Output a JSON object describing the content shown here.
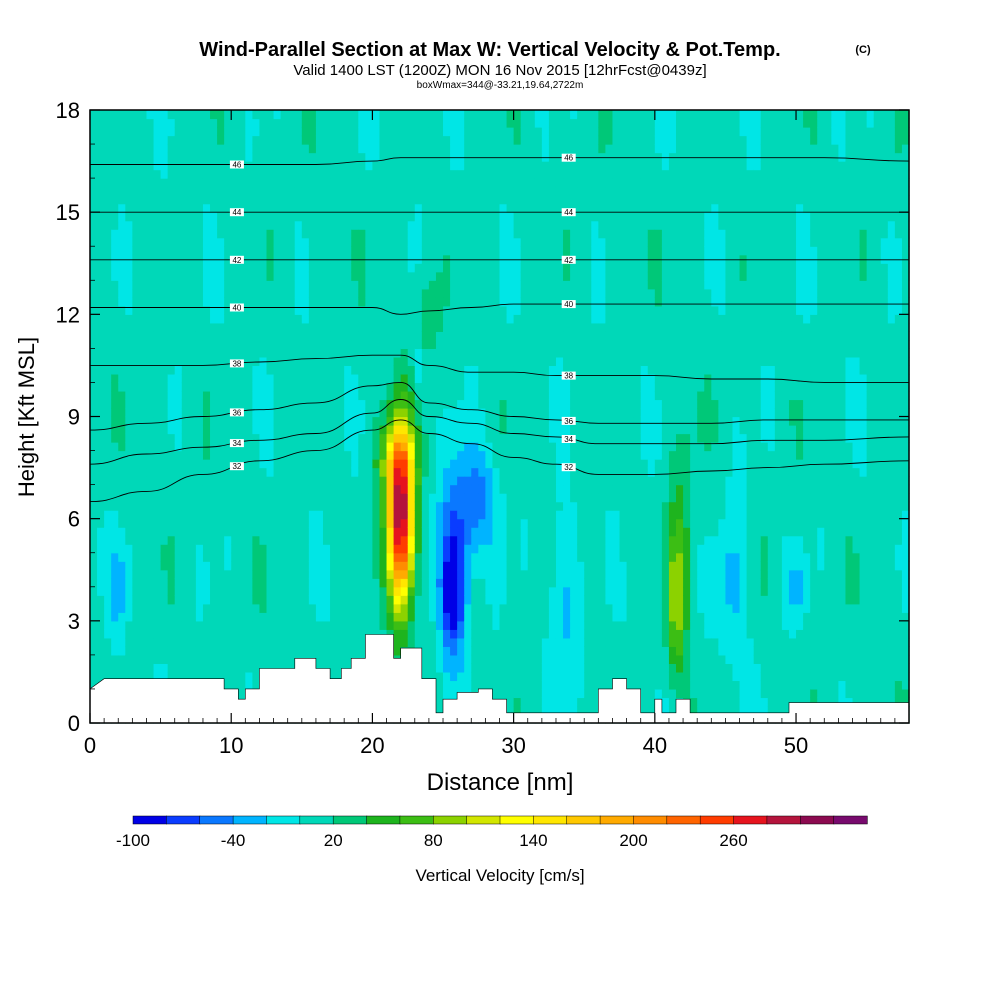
{
  "chart_data": {
    "type": "contour",
    "title": "Wind-Parallel Section at Max W: Vertical Velocity & Pot.Temp.",
    "title_mark": "(C)",
    "subtitle": "Valid 1400 LST (1200Z) MON 16 Nov 2015 [12hrFcst@0439z]",
    "subtitle2": "boxWmax=344@-33.21,19.64,2722m",
    "xlabel": "Distance [nm]",
    "ylabel": "Height [Kft MSL]",
    "xlim": [
      0,
      58
    ],
    "ylim": [
      0,
      18
    ],
    "x_ticks": [
      0,
      10,
      20,
      30,
      40,
      50
    ],
    "y_ticks": [
      0,
      3,
      6,
      9,
      12,
      15,
      18
    ],
    "colorbar": {
      "label": "Vertical Velocity [cm/s]",
      "min": -100,
      "step": 20,
      "tick_labels": [
        -100,
        -40,
        20,
        80,
        140,
        200,
        260
      ],
      "colors": [
        "#0000e6",
        "#0a3cff",
        "#0a78ff",
        "#00b4ff",
        "#00e6e6",
        "#00d8b8",
        "#00c878",
        "#1eb41e",
        "#3cbe14",
        "#8cd200",
        "#d2e600",
        "#ffff00",
        "#ffe600",
        "#ffc800",
        "#ffaa00",
        "#ff8c00",
        "#ff6400",
        "#ff3c00",
        "#e6141e",
        "#b4143c",
        "#8c0a50",
        "#780a6e"
      ]
    },
    "theta_contours": [
      {
        "label": "32",
        "y": [
          6.5,
          6.8,
          7.3,
          7.7,
          8.0,
          8.6,
          8.9,
          8.5,
          8.2,
          7.8,
          7.6,
          7.3,
          7.3,
          7.4,
          7.5,
          7.6,
          7.7
        ]
      },
      {
        "label": "34",
        "y": [
          7.6,
          7.9,
          8.1,
          8.3,
          8.5,
          9.1,
          9.5,
          9.0,
          8.8,
          8.5,
          8.4,
          8.2,
          8.2,
          8.2,
          8.3,
          8.3,
          8.4
        ]
      },
      {
        "label": "36",
        "y": [
          8.6,
          8.8,
          9.0,
          9.2,
          9.4,
          9.9,
          10.0,
          9.4,
          9.2,
          9.0,
          8.9,
          8.8,
          8.8,
          8.8,
          8.9,
          8.9,
          8.9
        ]
      },
      {
        "label": "38",
        "y": [
          10.5,
          10.5,
          10.5,
          10.6,
          10.7,
          10.8,
          10.8,
          10.5,
          10.3,
          10.3,
          10.2,
          10.2,
          10.2,
          10.1,
          10.1,
          10.0,
          10.0
        ]
      },
      {
        "label": "40",
        "y": [
          12.2,
          12.2,
          12.2,
          12.2,
          12.2,
          12.2,
          12.0,
          12.1,
          12.2,
          12.3,
          12.3,
          12.3,
          12.3,
          12.3,
          12.3,
          12.3,
          12.3
        ]
      },
      {
        "label": "42",
        "y": [
          13.6,
          13.6,
          13.6,
          13.6,
          13.6,
          13.6,
          13.6,
          13.6,
          13.6,
          13.6,
          13.6,
          13.6,
          13.6,
          13.6,
          13.6,
          13.6,
          13.6
        ]
      },
      {
        "label": "44",
        "y": [
          15.0,
          15.0,
          15.0,
          15.0,
          15.0,
          15.0,
          15.0,
          15.0,
          15.0,
          15.0,
          15.0,
          15.0,
          15.0,
          15.0,
          15.0,
          15.0,
          15.0
        ]
      },
      {
        "label": "46",
        "y": [
          16.4,
          16.4,
          16.4,
          16.4,
          16.4,
          16.5,
          16.6,
          16.6,
          16.6,
          16.6,
          16.6,
          16.6,
          16.6,
          16.6,
          16.6,
          16.6,
          16.5
        ]
      }
    ],
    "theta_x": [
      0,
      4,
      8,
      12,
      16,
      20,
      22,
      24,
      27,
      30,
      33,
      36,
      40,
      44,
      48,
      52,
      58
    ],
    "terrain": [
      [
        0,
        1.0
      ],
      [
        1,
        1.3
      ],
      [
        9.5,
        1.3
      ],
      [
        9.5,
        1.0
      ],
      [
        10.5,
        1.0
      ],
      [
        10.5,
        0.7
      ],
      [
        11,
        0.7
      ],
      [
        11,
        1.0
      ],
      [
        12,
        1.0
      ],
      [
        12,
        1.6
      ],
      [
        14.5,
        1.6
      ],
      [
        14.5,
        1.9
      ],
      [
        16,
        1.9
      ],
      [
        16,
        1.6
      ],
      [
        17,
        1.6
      ],
      [
        17,
        1.3
      ],
      [
        17.8,
        1.3
      ],
      [
        17.8,
        1.6
      ],
      [
        18.5,
        1.6
      ],
      [
        18.5,
        1.9
      ],
      [
        19.5,
        1.9
      ],
      [
        19.5,
        2.6
      ],
      [
        21.5,
        2.6
      ],
      [
        21.5,
        1.9
      ],
      [
        22,
        1.9
      ],
      [
        22,
        2.2
      ],
      [
        23.5,
        2.2
      ],
      [
        23.5,
        1.3
      ],
      [
        24.5,
        1.3
      ],
      [
        24.5,
        0.3
      ],
      [
        25,
        0.3
      ],
      [
        25,
        0.7
      ],
      [
        26,
        0.7
      ],
      [
        26,
        0.9
      ],
      [
        27.5,
        0.9
      ],
      [
        27.5,
        1.0
      ],
      [
        28.5,
        1.0
      ],
      [
        28.5,
        0.7
      ],
      [
        29.5,
        0.7
      ],
      [
        29.5,
        0.3
      ],
      [
        36,
        0.3
      ],
      [
        36,
        1.0
      ],
      [
        37,
        1.0
      ],
      [
        37,
        1.3
      ],
      [
        38,
        1.3
      ],
      [
        38,
        1.0
      ],
      [
        39,
        1.0
      ],
      [
        39,
        0.3
      ],
      [
        40,
        0.3
      ],
      [
        40,
        0.7
      ],
      [
        40.5,
        0.7
      ],
      [
        40.5,
        0.3
      ],
      [
        41.5,
        0.3
      ],
      [
        41.5,
        0.7
      ],
      [
        42.5,
        0.7
      ],
      [
        42.5,
        0.3
      ],
      [
        49.5,
        0.3
      ],
      [
        49.5,
        0.6
      ],
      [
        58,
        0.6
      ]
    ]
  }
}
